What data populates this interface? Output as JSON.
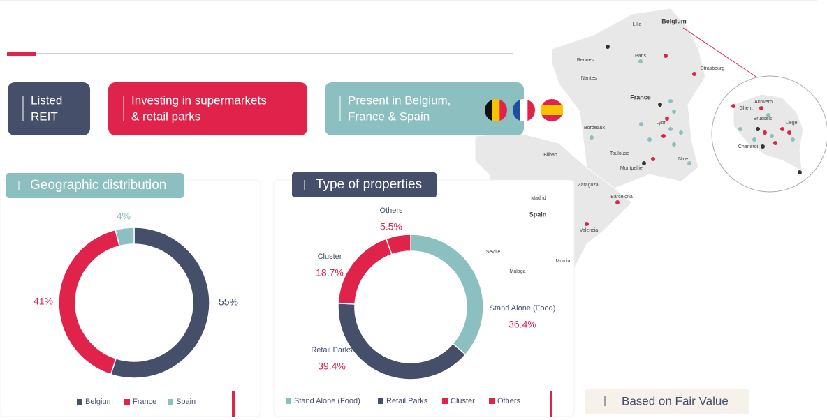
{
  "badges": [
    {
      "lines": [
        "Listed",
        "REIT"
      ]
    },
    {
      "lines": [
        "Investing in supermarkets",
        "& retail parks"
      ]
    },
    {
      "lines": [
        "Present in Belgium,",
        "France & Spain"
      ]
    }
  ],
  "chart_data": [
    {
      "type": "pie",
      "title": "Geographic distribution",
      "categories": [
        "Belgium",
        "France",
        "Spain"
      ],
      "values": [
        55,
        41,
        4
      ],
      "value_labels": [
        "55%",
        "41%",
        "4%"
      ],
      "colors": [
        "#454f6a",
        "#e0234a",
        "#8cc0c0"
      ],
      "legend": "bottom"
    },
    {
      "type": "pie",
      "title": "Type of properties",
      "categories": [
        "Stand Alone (Food)",
        "Retail Parks",
        "Cluster",
        "Others"
      ],
      "values": [
        36.4,
        39.4,
        18.7,
        5.5
      ],
      "value_labels": [
        "36.4%",
        "39.4%",
        "18.7%",
        "5.5%"
      ],
      "colors": [
        "#8cc0c0",
        "#454f6a",
        "#e0234a",
        "#e0234a"
      ],
      "legend": "bottom"
    }
  ],
  "map": {
    "labels": [
      "Lille",
      "Belgium",
      "Paris",
      "Rennes",
      "Nantes",
      "Strasbourg",
      "France",
      "Bordeaux",
      "Lyon",
      "Toulouse",
      "Montpellier",
      "Nice",
      "Bilbao",
      "Zaragoza",
      "Barcelona",
      "Madrid",
      "Spain",
      "Valencia",
      "Seville",
      "Murcia",
      "Malaga"
    ],
    "inset_labels": [
      "Antwerp",
      "Ghent",
      "Brussels",
      "Liege",
      "Charleroi"
    ]
  },
  "footnote": "Based on Fair Value"
}
